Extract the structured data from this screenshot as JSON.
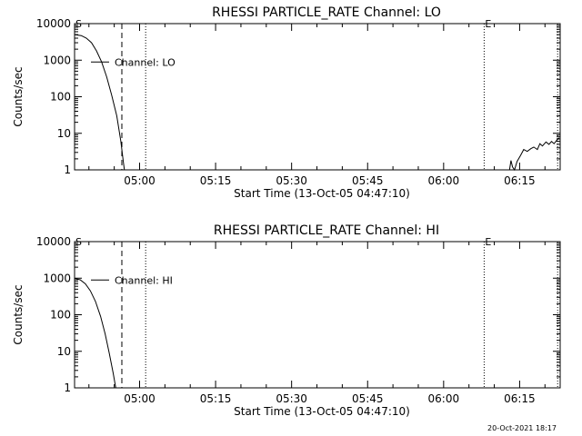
{
  "chart_data": [
    {
      "type": "line",
      "title": "RHESSI PARTICLE_RATE Channel: LO",
      "xlabel": "Start Time (13-Oct-05 04:47:10)",
      "ylabel": "Counts/sec",
      "yscale": "log",
      "ylim": [
        1,
        10000
      ],
      "ytick_labels": [
        "1",
        "10",
        "100",
        "1000",
        "10000"
      ],
      "ytick_values": [
        1,
        10,
        100,
        1000,
        10000
      ],
      "xtick_labels": [
        "05:00",
        "05:15",
        "05:30",
        "05:45",
        "06:00",
        "06:15"
      ],
      "xtick_minutes": [
        60,
        75,
        90,
        105,
        120,
        135
      ],
      "xlim_minutes": [
        47.17,
        143.0
      ],
      "grid": false,
      "legend_label": "Channel: LO",
      "legend_position": "top-left",
      "markers": [
        {
          "type": "dashed",
          "label": "S",
          "x_minutes": 56.5
        },
        {
          "type": "dotted",
          "label": "",
          "x_minutes": 61.2
        },
        {
          "type": "dotted",
          "label": "E",
          "x_minutes": 128.0
        },
        {
          "type": "dotted",
          "label": "",
          "x_minutes": 142.5
        }
      ],
      "series": [
        {
          "name": "Channel: LO",
          "segments": [
            [
              [
                47.2,
                5000
              ],
              [
                48.5,
                4700
              ],
              [
                49.5,
                4000
              ],
              [
                50.5,
                3000
              ],
              [
                51.5,
                1800
              ],
              [
                52.5,
                900
              ],
              [
                53.5,
                350
              ],
              [
                54.5,
                110
              ],
              [
                55.5,
                30
              ],
              [
                56.3,
                6
              ],
              [
                56.8,
                1.6
              ],
              [
                57.0,
                1
              ]
            ],
            [
              [
                133.0,
                1
              ],
              [
                133.3,
                1.8
              ],
              [
                133.6,
                1.2
              ],
              [
                134.0,
                1
              ],
              [
                134.5,
                1.7
              ],
              [
                135.2,
                2.5
              ],
              [
                135.8,
                3.6
              ],
              [
                136.5,
                3.2
              ],
              [
                137.2,
                3.8
              ],
              [
                137.8,
                4.2
              ],
              [
                138.5,
                3.6
              ],
              [
                139.0,
                5.2
              ],
              [
                139.5,
                4.5
              ],
              [
                140.2,
                5.8
              ],
              [
                140.8,
                5.0
              ],
              [
                141.3,
                6.0
              ],
              [
                141.8,
                5.2
              ],
              [
                142.3,
                6.4
              ],
              [
                142.8,
                7.5
              ]
            ]
          ]
        }
      ]
    },
    {
      "type": "line",
      "title": "RHESSI PARTICLE_RATE Channel: HI",
      "xlabel": "Start Time (13-Oct-05 04:47:10)",
      "ylabel": "Counts/sec",
      "yscale": "log",
      "ylim": [
        1,
        10000
      ],
      "ytick_labels": [
        "1",
        "10",
        "100",
        "1000",
        "10000"
      ],
      "ytick_values": [
        1,
        10,
        100,
        1000,
        10000
      ],
      "xtick_labels": [
        "05:00",
        "05:15",
        "05:30",
        "05:45",
        "06:00",
        "06:15"
      ],
      "xtick_minutes": [
        60,
        75,
        90,
        105,
        120,
        135
      ],
      "xlim_minutes": [
        47.17,
        143.0
      ],
      "grid": false,
      "legend_label": "Channel: HI",
      "legend_position": "top-left",
      "markers": [
        {
          "type": "dashed",
          "label": "S",
          "x_minutes": 56.5
        },
        {
          "type": "dotted",
          "label": "",
          "x_minutes": 61.2
        },
        {
          "type": "dotted",
          "label": "E",
          "x_minutes": 128.0
        },
        {
          "type": "dotted",
          "label": "",
          "x_minutes": 142.5
        }
      ],
      "series": [
        {
          "name": "Channel: HI",
          "segments": [
            [
              [
                47.2,
                1000
              ],
              [
                48.3,
                900
              ],
              [
                49.3,
                700
              ],
              [
                50.3,
                450
              ],
              [
                51.3,
                230
              ],
              [
                52.3,
                90
              ],
              [
                53.2,
                30
              ],
              [
                54.0,
                9
              ],
              [
                54.8,
                2.5
              ],
              [
                55.3,
                1
              ]
            ]
          ]
        }
      ]
    }
  ],
  "footer": {
    "date_stamp": "20-Oct-2021 18:17"
  }
}
